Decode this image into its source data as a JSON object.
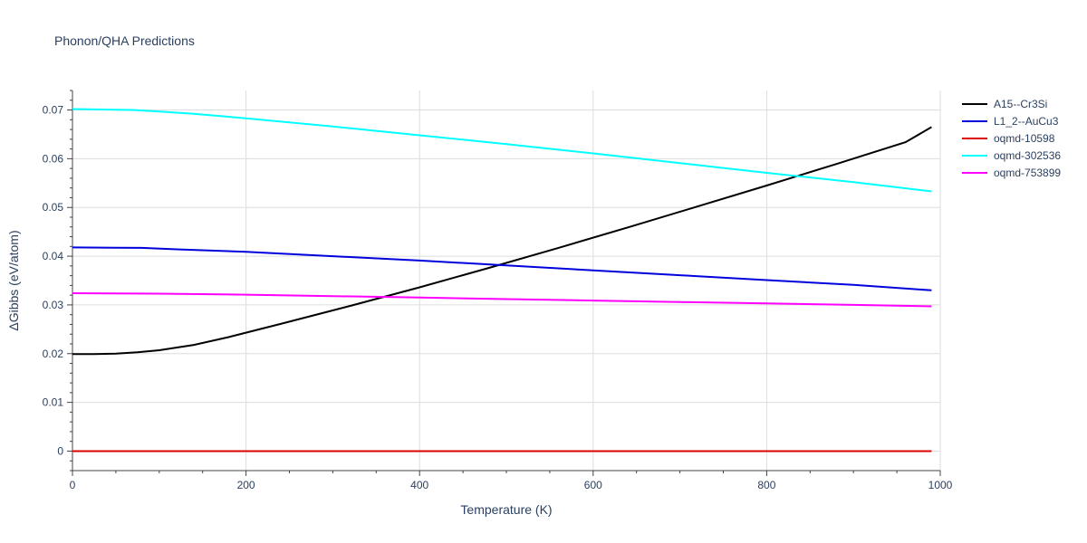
{
  "chart_data": {
    "type": "line",
    "title": "Phonon/QHA Predictions",
    "xlabel": "Temperature (K)",
    "ylabel": "ΔGibbs (eV/atom)",
    "xlim": [
      0,
      1000
    ],
    "ylim": [
      -0.004,
      0.074
    ],
    "xticks": [
      0,
      200,
      400,
      600,
      800,
      1000
    ],
    "yticks": [
      0,
      0.01,
      0.02,
      0.03,
      0.04,
      0.05,
      0.06,
      0.07
    ],
    "ytick_labels": [
      "0",
      "0.01",
      "0.02",
      "0.03",
      "0.04",
      "0.05",
      "0.06",
      "0.07"
    ],
    "grid": true,
    "legend_position": "top-right",
    "series": [
      {
        "name": "A15--Cr3Si",
        "color": "#000000",
        "x": [
          0,
          25,
          50,
          75,
          100,
          140,
          180,
          240,
          320,
          400,
          480,
          560,
          640,
          720,
          800,
          880,
          960,
          990
        ],
        "y": [
          0.0199,
          0.0199,
          0.02,
          0.0203,
          0.0207,
          0.0218,
          0.0234,
          0.0261,
          0.0298,
          0.0336,
          0.0376,
          0.0417,
          0.0459,
          0.0502,
          0.0545,
          0.0589,
          0.0634,
          0.0665
        ]
      },
      {
        "name": "L1_2--AuCu3",
        "color": "#0000dd",
        "x": [
          0,
          80,
          120,
          200,
          300,
          400,
          500,
          600,
          700,
          800,
          900,
          990
        ],
        "y": [
          0.0418,
          0.0417,
          0.0414,
          0.0409,
          0.04,
          0.0391,
          0.0381,
          0.0371,
          0.0361,
          0.0351,
          0.0341,
          0.033
        ]
      },
      {
        "name": "oqmd-10598",
        "color": "#dd0000",
        "x": [
          0,
          990
        ],
        "y": [
          0,
          0
        ]
      },
      {
        "name": "oqmd-302536",
        "color": "#00ffff",
        "x": [
          0,
          70,
          100,
          140,
          200,
          300,
          400,
          500,
          600,
          700,
          800,
          900,
          990
        ],
        "y": [
          0.0702,
          0.07,
          0.0697,
          0.0692,
          0.0683,
          0.0666,
          0.0648,
          0.063,
          0.0611,
          0.0591,
          0.0571,
          0.0552,
          0.0533
        ]
      },
      {
        "name": "oqmd-753899",
        "color": "#ff00ff",
        "x": [
          0,
          100,
          200,
          300,
          400,
          500,
          600,
          700,
          800,
          900,
          990
        ],
        "y": [
          0.0324,
          0.0323,
          0.0321,
          0.0318,
          0.0315,
          0.0312,
          0.0309,
          0.0306,
          0.0303,
          0.03,
          0.0297
        ]
      }
    ]
  }
}
